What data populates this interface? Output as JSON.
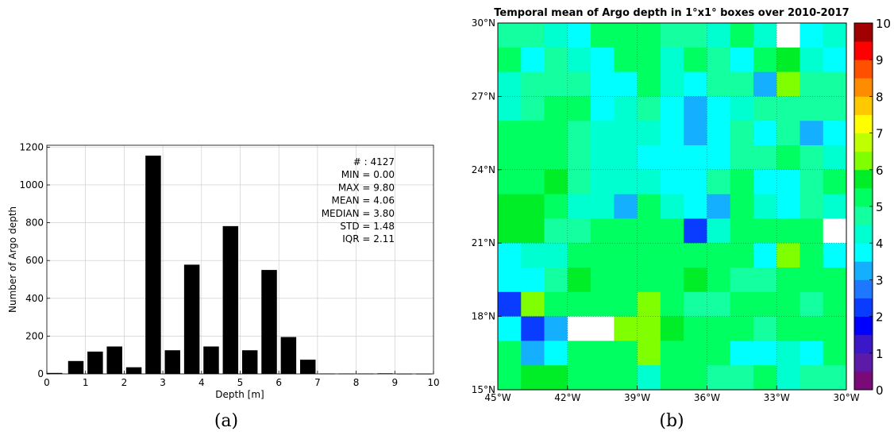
{
  "panel_a": {
    "caption": "(a)",
    "chart_data": {
      "type": "bar",
      "xlabel": "Depth [m]",
      "ylabel": "Number of Argo depth",
      "xlim": [
        0,
        10
      ],
      "ylim": [
        0,
        1210
      ],
      "grid": true,
      "x_ticks": [
        0,
        1,
        2,
        3,
        4,
        5,
        6,
        7,
        8,
        9,
        10
      ],
      "y_ticks": [
        0,
        200,
        400,
        600,
        800,
        1000,
        1200
      ],
      "bar_width": 0.4,
      "x": [
        0.2,
        0.75,
        1.25,
        1.75,
        2.25,
        2.75,
        3.25,
        3.75,
        4.25,
        4.75,
        5.25,
        5.75,
        6.25,
        6.75,
        7.25,
        7.75,
        8.25,
        8.75,
        9.25,
        9.75
      ],
      "values": [
        5,
        68,
        118,
        145,
        35,
        1155,
        125,
        578,
        145,
        782,
        125,
        550,
        195,
        75,
        2,
        2,
        2,
        3,
        1,
        1
      ],
      "stats": [
        {
          "label": "#",
          "value": "4127"
        },
        {
          "label": "MIN",
          "value": "0.00"
        },
        {
          "label": "MAX",
          "value": "9.80"
        },
        {
          "label": "MEAN",
          "value": "4.06"
        },
        {
          "label": "MEDIAN",
          "value": "3.80"
        },
        {
          "label": "STD",
          "value": "1.48"
        },
        {
          "label": "IQR",
          "value": "2.11"
        }
      ]
    }
  },
  "panel_b": {
    "caption": "(b)",
    "chart_data": {
      "type": "heatmap",
      "title": "Temporal mean of Argo depth in 1°x1° boxes over 2010-2017",
      "lon_range": [
        -45,
        -30
      ],
      "lat_range": [
        15,
        30
      ],
      "cell_size_deg": 1,
      "x_ticks": [
        "45°W",
        "42°W",
        "39°W",
        "36°W",
        "33°W",
        "30°W"
      ],
      "y_ticks": [
        "15°N",
        "18°N",
        "21°N",
        "24°N",
        "27°N",
        "30°N"
      ],
      "colorbar": {
        "min": 0,
        "max": 10,
        "ticks": [
          0,
          1,
          2,
          3,
          4,
          5,
          6,
          7,
          8,
          9,
          10
        ],
        "levels": 20,
        "colormap": [
          "#7a0a7a",
          "#5b1aa8",
          "#3a18c8",
          "#0000ff",
          "#0a3cff",
          "#1e78ff",
          "#14b0ff",
          "#00ffff",
          "#00ffd0",
          "#14ffa0",
          "#00ff60",
          "#00ee28",
          "#80ff00",
          "#bfff00",
          "#ffff00",
          "#ffc800",
          "#ff8c00",
          "#ff5000",
          "#ff0000",
          "#a00000"
        ]
      },
      "no_data": null,
      "rows_top_to_bottom": [
        [
          4.5,
          4.5,
          4,
          3.5,
          5,
          5,
          5,
          4.5,
          4.5,
          4,
          5,
          4,
          null,
          3.5,
          4
        ],
        [
          5,
          3.5,
          4.5,
          4,
          3.5,
          5,
          5,
          4,
          5,
          4.5,
          3.5,
          5,
          5.5,
          4,
          3.5
        ],
        [
          4,
          4.5,
          4.5,
          4.5,
          3.5,
          3.5,
          5,
          4,
          3.5,
          4.5,
          4.5,
          3,
          6,
          4.5,
          4.5
        ],
        [
          4,
          4.5,
          5,
          5,
          3.5,
          4,
          4.5,
          3.5,
          3,
          3.5,
          4,
          4.5,
          4.5,
          4.5,
          4.5
        ],
        [
          5,
          5,
          5,
          4.5,
          4,
          4,
          4,
          3.5,
          3,
          3.5,
          4.5,
          3.5,
          4.5,
          3,
          3.5
        ],
        [
          5,
          5,
          5,
          4.5,
          4,
          4,
          3.5,
          3.5,
          3.5,
          3.5,
          4.5,
          4.5,
          5,
          4.5,
          4
        ],
        [
          5,
          5,
          5.5,
          4.5,
          4,
          4,
          4,
          3.5,
          3.5,
          4.5,
          5,
          3.5,
          3.5,
          4.5,
          5
        ],
        [
          5.5,
          5.5,
          5,
          4,
          4,
          3,
          5,
          4,
          3.5,
          3,
          5,
          4,
          3.5,
          4.5,
          4
        ],
        [
          5.5,
          5.5,
          4.5,
          4.5,
          5,
          5,
          5,
          5,
          2,
          4,
          5,
          5,
          5,
          5,
          null
        ],
        [
          3.5,
          4,
          4,
          5,
          5,
          5,
          5,
          5,
          5,
          5,
          5,
          3.5,
          6,
          5,
          3.5
        ],
        [
          3.5,
          3.5,
          4.5,
          5.5,
          5,
          5,
          5,
          5,
          5.5,
          5,
          4.5,
          4.5,
          5,
          5,
          5
        ],
        [
          2,
          6,
          5,
          5,
          5,
          5,
          6,
          5,
          4.5,
          4.5,
          5,
          5,
          5,
          4.5,
          5
        ],
        [
          3.5,
          2,
          3,
          null,
          null,
          6,
          6,
          5.5,
          5,
          5,
          5,
          4.5,
          5,
          5,
          5
        ],
        [
          5,
          3,
          3.5,
          5,
          5,
          5,
          6,
          5,
          5,
          5,
          3.5,
          3.5,
          4,
          3.5,
          5
        ],
        [
          5,
          5.5,
          5.5,
          5,
          5,
          5,
          4,
          5,
          5,
          4.5,
          4.5,
          5,
          4,
          4.5,
          4.5
        ]
      ]
    }
  }
}
